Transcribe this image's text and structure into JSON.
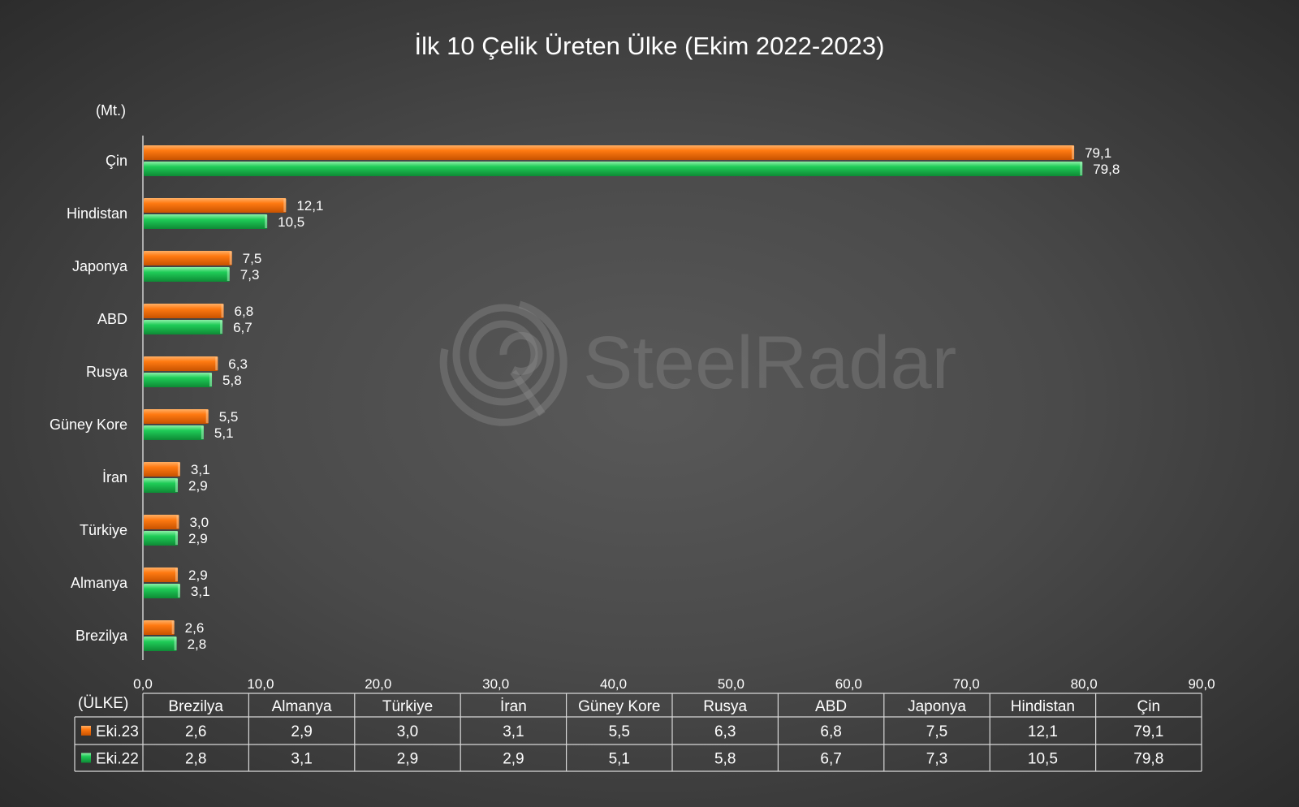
{
  "colors": {
    "series_2023": "#ff7a12",
    "series_2022": "#1fcc57",
    "axis": "#cfcfcf",
    "background": "#4a4a4a"
  },
  "watermark": {
    "text": "SteelRadar",
    "icon": "radar-q-logo-icon"
  },
  "chart_data": {
    "type": "bar",
    "orientation": "horizontal",
    "title": "İlk 10 Çelik Üreten Ülke (Ekim 2022-2023)",
    "unit_label": "(Mt.)",
    "table_header_label": "(ÜLKE)",
    "categories": [
      "Brezilya",
      "Almanya",
      "Türkiye",
      "İran",
      "Güney Kore",
      "Rusya",
      "ABD",
      "Japonya",
      "Hindistan",
      "Çin"
    ],
    "series": [
      {
        "name": "Eki.23",
        "values": [
          2.6,
          2.9,
          3.0,
          3.1,
          5.5,
          6.3,
          6.8,
          7.5,
          12.1,
          79.1
        ]
      },
      {
        "name": "Eki.22",
        "values": [
          2.8,
          3.1,
          2.9,
          2.9,
          5.1,
          5.8,
          6.7,
          7.3,
          10.5,
          79.8
        ]
      }
    ],
    "xlim": [
      0,
      90
    ],
    "xticks": [
      "0,0",
      "10,0",
      "20,0",
      "30,0",
      "40,0",
      "50,0",
      "60,0",
      "70,0",
      "80,0",
      "90,0"
    ],
    "decimal_separator": ",",
    "grid": false,
    "legend": "data-table-below"
  }
}
